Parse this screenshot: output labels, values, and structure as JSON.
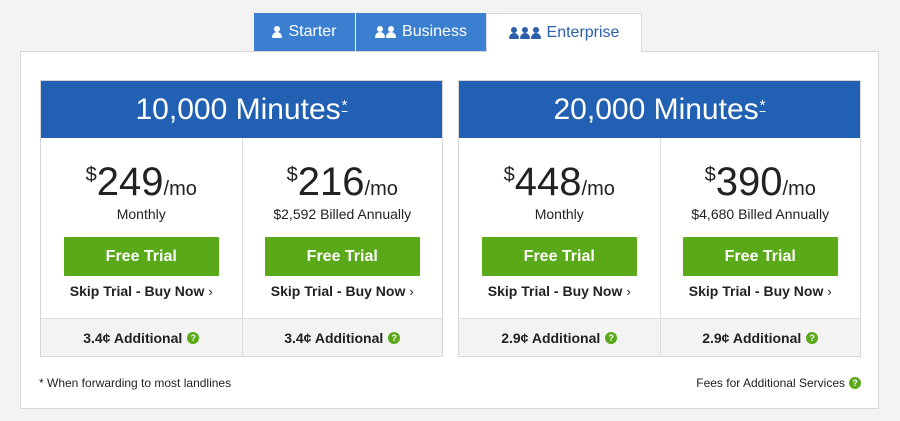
{
  "tabs": [
    {
      "label": "Starter",
      "icon": "person-icon"
    },
    {
      "label": "Business",
      "icon": "two-people-icon"
    },
    {
      "label": "Enterprise",
      "icon": "three-people-icon",
      "active": true
    }
  ],
  "plans": [
    {
      "title": "10,000 Minutes",
      "title_mark": "*",
      "options": [
        {
          "currency": "$",
          "amount": "249",
          "period": "/mo",
          "billing": "Monthly",
          "trial_label": "Free Trial",
          "skip_label": "Skip Trial - Buy Now",
          "additional": "3.4¢ Additional"
        },
        {
          "currency": "$",
          "amount": "216",
          "period": "/mo",
          "billing": "$2,592 Billed Annually",
          "trial_label": "Free Trial",
          "skip_label": "Skip Trial - Buy Now",
          "additional": "3.4¢ Additional"
        }
      ]
    },
    {
      "title": "20,000 Minutes",
      "title_mark": "*",
      "options": [
        {
          "currency": "$",
          "amount": "448",
          "period": "/mo",
          "billing": "Monthly",
          "trial_label": "Free Trial",
          "skip_label": "Skip Trial - Buy Now",
          "additional": "2.9¢ Additional"
        },
        {
          "currency": "$",
          "amount": "390",
          "period": "/mo",
          "billing": "$4,680 Billed Annually",
          "trial_label": "Free Trial",
          "skip_label": "Skip Trial - Buy Now",
          "additional": "2.9¢ Additional"
        }
      ]
    }
  ],
  "footnote": "* When forwarding to most landlines",
  "fees_link": "Fees for Additional Services",
  "colors": {
    "tab_blue": "#3b7fd0",
    "header_blue": "#2160b2",
    "green": "#5aa918"
  }
}
